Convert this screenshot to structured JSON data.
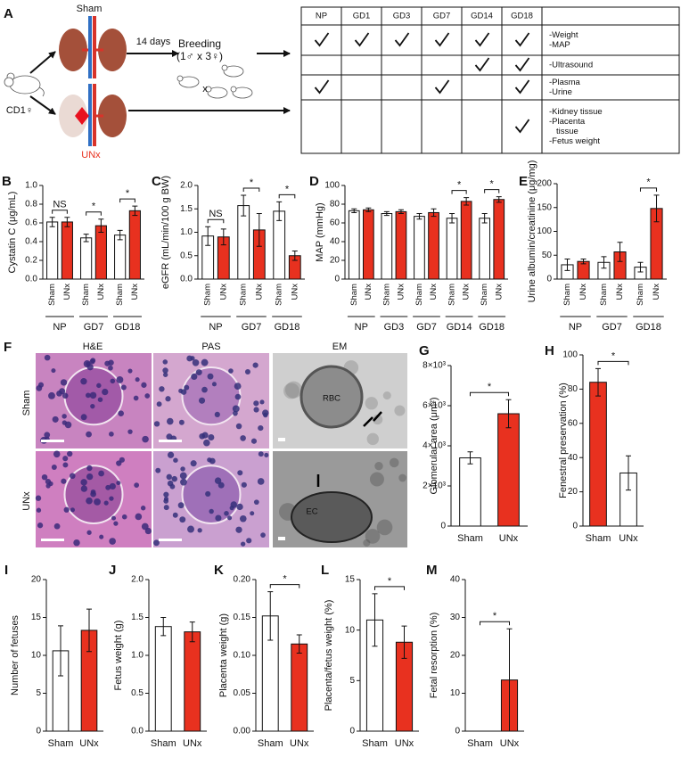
{
  "panel_a": {
    "label": "A",
    "sham": "Sham",
    "unx": "UNx",
    "mouse": "CD1♀",
    "duration": "14 days",
    "breeding": "Breeding",
    "breeding_ratio": "(1♂ x 3♀)",
    "cross": "x",
    "table": {
      "columns": [
        "NP",
        "GD1",
        "GD3",
        "GD7",
        "GD14",
        "GD18"
      ],
      "rows": [
        {
          "checks": [
            true,
            true,
            true,
            true,
            true,
            true
          ],
          "items": [
            "-Weight",
            "-MAP"
          ]
        },
        {
          "checks": [
            false,
            false,
            false,
            false,
            true,
            true
          ],
          "items": [
            "-Ultrasound"
          ]
        },
        {
          "checks": [
            true,
            false,
            false,
            true,
            false,
            true
          ],
          "items": [
            "-Plasma",
            "-Urine"
          ]
        },
        {
          "checks": [
            false,
            false,
            false,
            false,
            false,
            true
          ],
          "items": [
            "-Kidney tissue",
            "-Placenta",
            "tissue",
            "-Fetus weight"
          ]
        }
      ]
    }
  },
  "panel_f": {
    "label": "F",
    "columns": [
      "H&E",
      "PAS",
      "EM"
    ],
    "rows": [
      "Sham",
      "UNx"
    ],
    "annotations": [
      "RBC",
      "EC"
    ]
  },
  "chart_data": [
    {
      "type": "bar",
      "label": "B",
      "y_label": "Cystatin C (μg/mL)",
      "categories": [
        "NP",
        "GD7",
        "GD18"
      ],
      "series": [
        {
          "name": "Sham",
          "color": "#ffffff",
          "values": [
            0.61,
            0.44,
            0.47
          ],
          "errors": [
            0.05,
            0.04,
            0.05
          ]
        },
        {
          "name": "UNx",
          "color": "#e8311f",
          "values": [
            0.61,
            0.57,
            0.73
          ],
          "errors": [
            0.05,
            0.07,
            0.05
          ]
        }
      ],
      "significance": [
        "NS",
        "*",
        "*"
      ],
      "ylim": [
        0,
        1.0
      ],
      "yticks": [
        {
          "value": 0,
          "label": "0.0"
        },
        0.2,
        0.4,
        0.6,
        0.8,
        {
          "value": 1.0,
          "label": "1.0"
        }
      ]
    },
    {
      "type": "bar",
      "label": "C",
      "y_label": "eGFR (mL/min/100 g BW)",
      "categories": [
        "NP",
        "GD7",
        "GD18"
      ],
      "series": [
        {
          "name": "Sham",
          "color": "#ffffff",
          "values": [
            0.92,
            1.57,
            1.45
          ],
          "errors": [
            0.2,
            0.22,
            0.2
          ]
        },
        {
          "name": "UNx",
          "color": "#e8311f",
          "values": [
            0.9,
            1.05,
            0.5
          ],
          "errors": [
            0.17,
            0.35,
            0.1
          ]
        }
      ],
      "significance": [
        "NS",
        "*",
        "*"
      ],
      "ylim": [
        0,
        2.0
      ],
      "yticks": [
        {
          "value": 0,
          "label": "0.0"
        },
        0.5,
        {
          "value": 1.0,
          "label": "1.0"
        },
        1.5,
        {
          "value": 2.0,
          "label": "2.0"
        }
      ]
    },
    {
      "type": "bar",
      "label": "D",
      "y_label": "MAP (mmHg)",
      "categories": [
        "NP",
        "GD3",
        "GD7",
        "GD14",
        "GD18"
      ],
      "series": [
        {
          "name": "Sham",
          "color": "#ffffff",
          "values": [
            73,
            70,
            67,
            65,
            65
          ],
          "errors": [
            2,
            2,
            3,
            5,
            5
          ]
        },
        {
          "name": "UNx",
          "color": "#e8311f",
          "values": [
            74,
            72,
            71,
            83,
            85
          ],
          "errors": [
            2,
            2,
            4,
            4,
            3
          ]
        }
      ],
      "significance": [
        null,
        null,
        null,
        "*",
        "*"
      ],
      "ylim": [
        0,
        100
      ],
      "yticks": [
        0,
        20,
        40,
        60,
        80,
        100
      ]
    },
    {
      "type": "bar",
      "label": "E",
      "y_label": "Urine albumin/creatinine (μg/mg)",
      "categories": [
        "NP",
        "GD7",
        "GD18"
      ],
      "series": [
        {
          "name": "Sham",
          "color": "#ffffff",
          "values": [
            30,
            35,
            25
          ],
          "errors": [
            12,
            12,
            10
          ]
        },
        {
          "name": "UNx",
          "color": "#e8311f",
          "values": [
            37,
            57,
            148
          ],
          "errors": [
            5,
            20,
            28
          ]
        }
      ],
      "significance": [
        null,
        null,
        "*"
      ],
      "ylim": [
        0,
        200
      ],
      "yticks": [
        0,
        50,
        100,
        150,
        200
      ]
    },
    {
      "type": "bar",
      "label": "G",
      "y_label": "Glomerular area (μm²)",
      "categories": [
        "Sham",
        "UNx"
      ],
      "values": [
        3400,
        5600
      ],
      "errors": [
        300,
        700
      ],
      "colors": [
        "#ffffff",
        "#e8311f"
      ],
      "significance": "*",
      "ylim": [
        0,
        8000
      ],
      "yticks": [
        0,
        {
          "value": 2000,
          "label": "2×10³"
        },
        {
          "value": 4000,
          "label": "4×10³"
        },
        {
          "value": 6000,
          "label": "6×10³"
        },
        {
          "value": 8000,
          "label": "8×10³"
        }
      ]
    },
    {
      "type": "bar",
      "label": "H",
      "y_label": "Fenestral preservation (%)",
      "categories": [
        "Sham",
        "UNx"
      ],
      "values": [
        84,
        31
      ],
      "errors": [
        8,
        10
      ],
      "colors": [
        "#e8311f",
        "#ffffff"
      ],
      "significance": "*",
      "ylim": [
        0,
        100
      ],
      "yticks": [
        0,
        20,
        40,
        60,
        80,
        100
      ]
    },
    {
      "type": "bar",
      "label": "I",
      "y_label": "Number of fetuses",
      "categories": [
        "Sham",
        "UNx"
      ],
      "values": [
        10.6,
        13.3
      ],
      "errors": [
        3.3,
        2.8
      ],
      "colors": [
        "#ffffff",
        "#e8311f"
      ],
      "ylim": [
        0,
        20
      ],
      "yticks": [
        0,
        5,
        10,
        15,
        20
      ]
    },
    {
      "type": "bar",
      "label": "J",
      "y_label": "Fetus weight (g)",
      "categories": [
        "Sham",
        "UNx"
      ],
      "values": [
        1.38,
        1.31
      ],
      "errors": [
        0.12,
        0.13
      ],
      "colors": [
        "#ffffff",
        "#e8311f"
      ],
      "ylim": [
        0,
        2.0
      ],
      "yticks": [
        {
          "value": 0,
          "label": "0.0"
        },
        0.5,
        {
          "value": 1.0,
          "label": "1.0"
        },
        1.5,
        {
          "value": 2.0,
          "label": "2.0"
        }
      ]
    },
    {
      "type": "bar",
      "label": "K",
      "y_label": "Placenta weight (g)",
      "categories": [
        "Sham",
        "UNx"
      ],
      "values": [
        0.152,
        0.115
      ],
      "errors": [
        0.032,
        0.012
      ],
      "colors": [
        "#ffffff",
        "#e8311f"
      ],
      "significance": "*",
      "ylim": [
        0,
        0.2
      ],
      "yticks": [
        {
          "value": 0,
          "label": "0.00"
        },
        0.05,
        {
          "value": 0.1,
          "label": "0.10"
        },
        0.15,
        {
          "value": 0.2,
          "label": "0.20"
        }
      ]
    },
    {
      "type": "bar",
      "label": "L",
      "y_label": "Placenta/fetus weight (%)",
      "categories": [
        "Sham",
        "UNx"
      ],
      "values": [
        11.0,
        8.8
      ],
      "errors": [
        2.6,
        1.6
      ],
      "colors": [
        "#ffffff",
        "#e8311f"
      ],
      "significance": "*",
      "ylim": [
        0,
        15
      ],
      "yticks": [
        0,
        5,
        10,
        15
      ]
    },
    {
      "type": "bar",
      "label": "M",
      "y_label": "Fetal resorption (%)",
      "categories": [
        "Sham",
        "UNx"
      ],
      "values": [
        0,
        13.5
      ],
      "errors": [
        0,
        13.5
      ],
      "colors": [
        "#ffffff",
        "#e8311f"
      ],
      "significance": "*",
      "ylim": [
        0,
        40
      ],
      "yticks": [
        0,
        10,
        20,
        30,
        40
      ]
    }
  ]
}
